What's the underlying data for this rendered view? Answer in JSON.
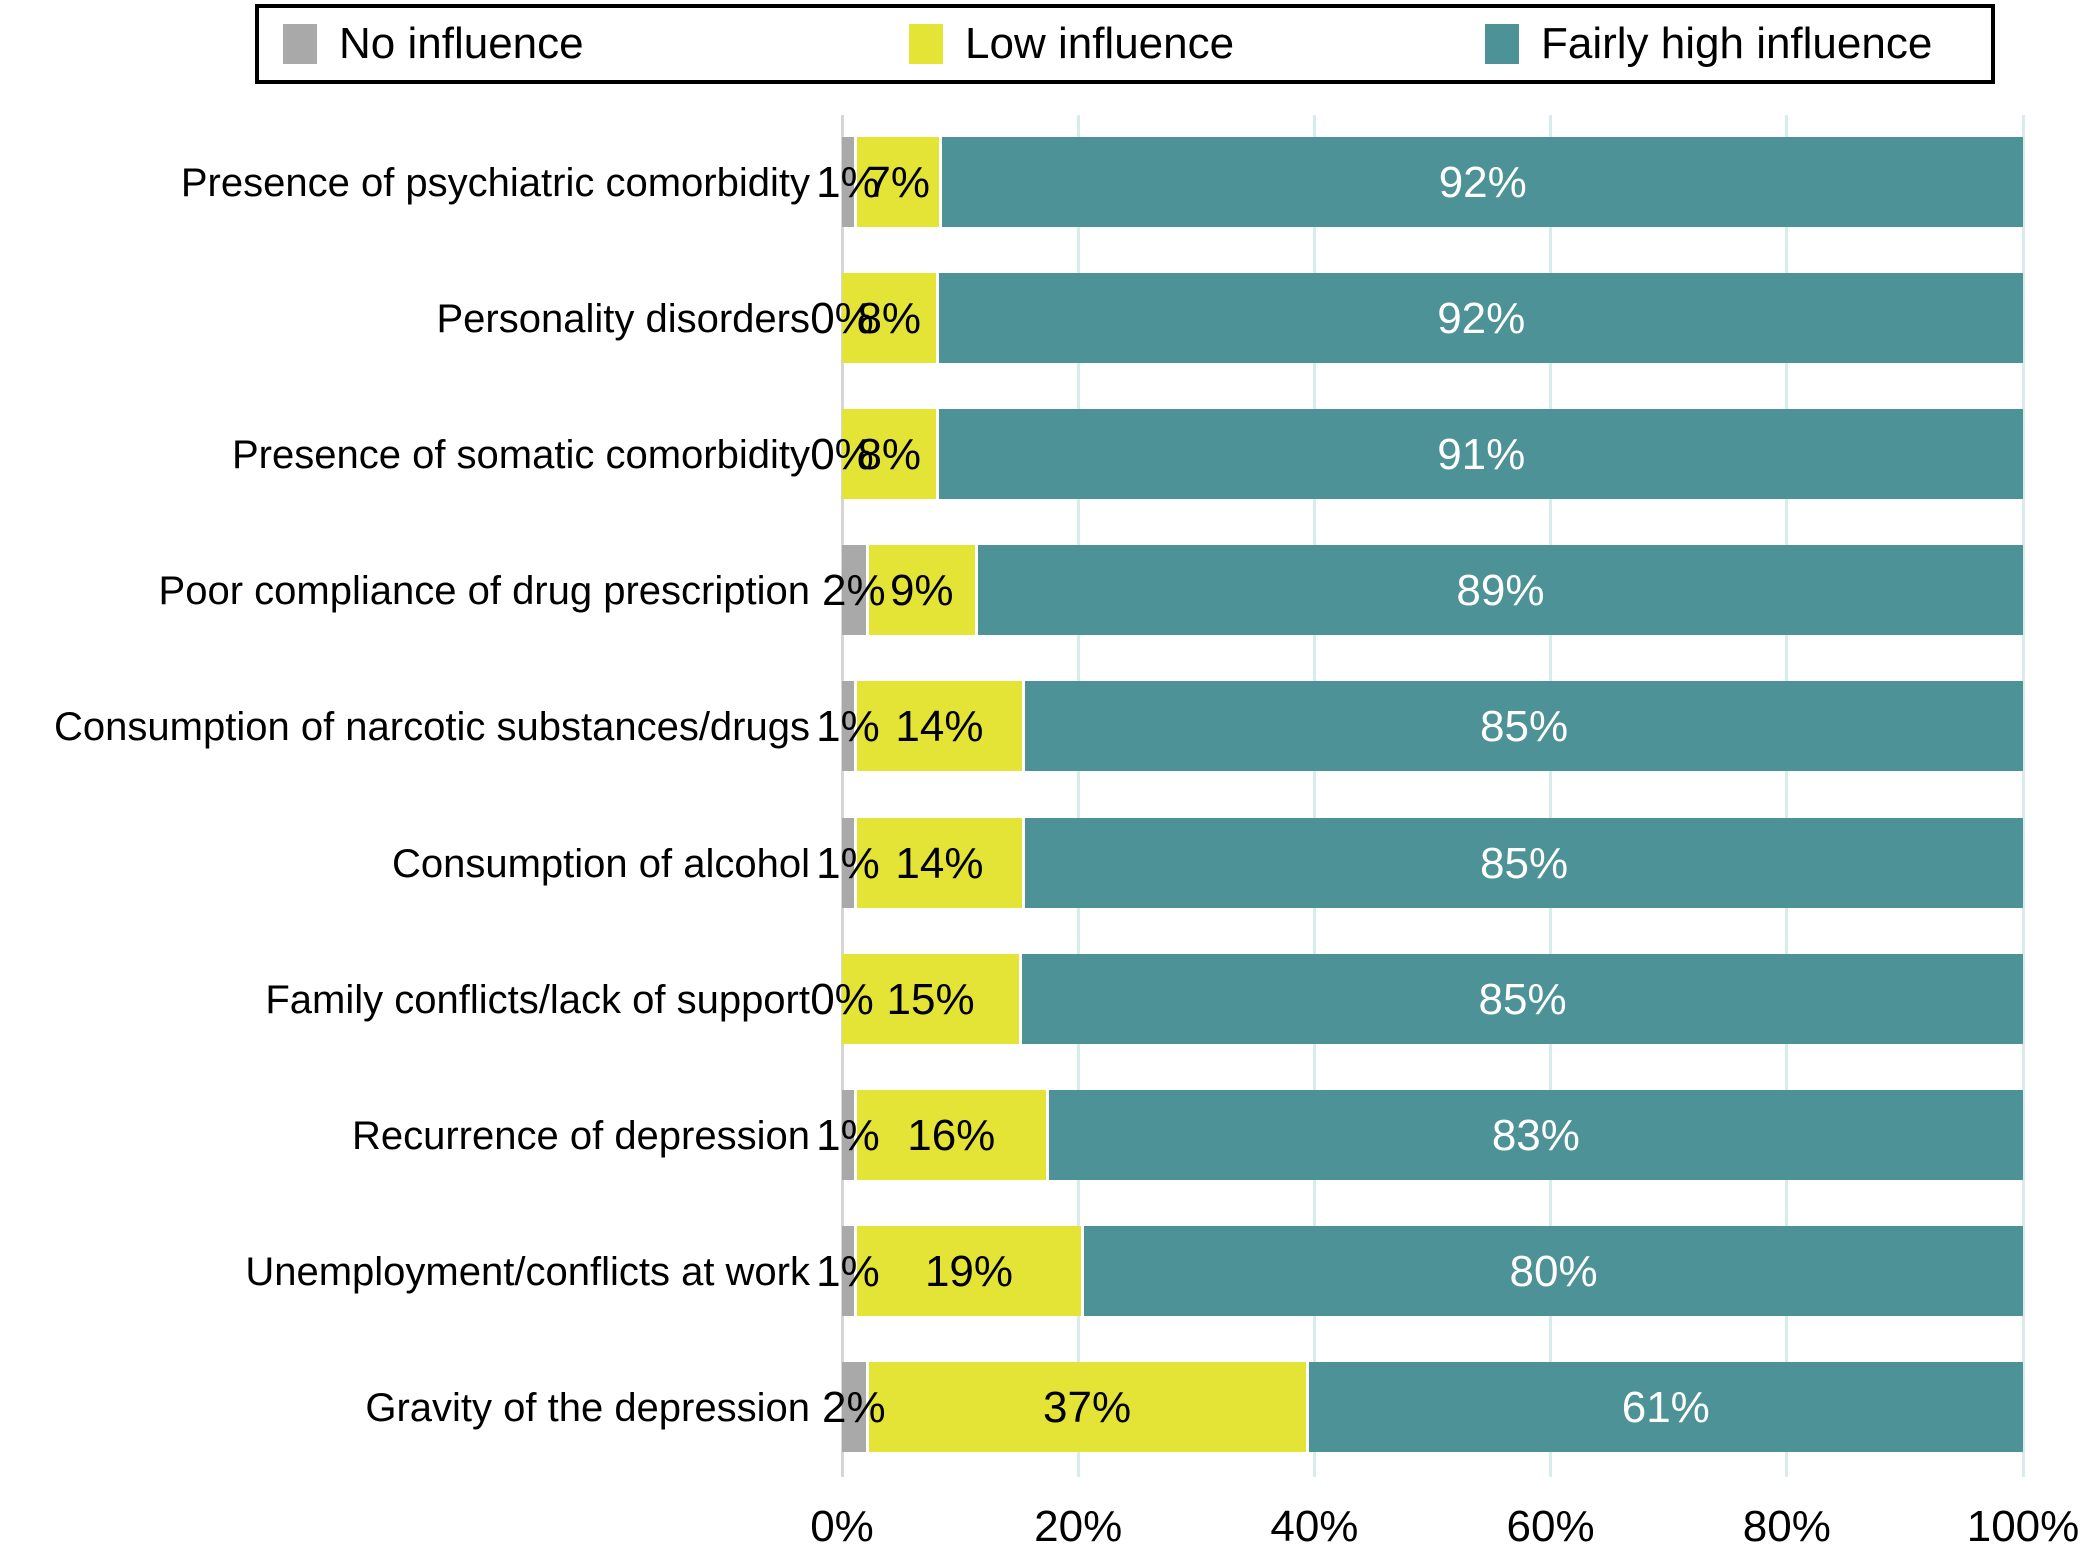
{
  "chart_data": {
    "type": "bar",
    "orientation": "horizontal",
    "stacked": true,
    "title": "",
    "xlabel": "",
    "ylabel": "",
    "xlim": [
      0,
      100
    ],
    "x_ticks": [
      "0%",
      "20%",
      "40%",
      "60%",
      "80%",
      "100%"
    ],
    "grid": true,
    "legend_position": "top",
    "value_suffix": "%",
    "categories": [
      "Presence of psychiatric comorbidity",
      "Personality disorders",
      "Presence of somatic comorbidity",
      "Poor compliance of drug prescription",
      "Consumption of narcotic substances/drugs",
      "Consumption of alcohol",
      "Family conflicts/lack of support",
      "Recurrence of depression",
      "Unemployment/conflicts at work",
      "Gravity of the depression"
    ],
    "series": [
      {
        "name": "No influence",
        "color": "#a9a9a9",
        "label_color": "#000000",
        "values": [
          1,
          0,
          0,
          2,
          1,
          1,
          0,
          1,
          1,
          2
        ]
      },
      {
        "name": "Low influence",
        "color": "#e3e436",
        "label_color": "#000000",
        "values": [
          7,
          8,
          8,
          9,
          14,
          14,
          15,
          16,
          19,
          37
        ]
      },
      {
        "name": "Fairly high influence",
        "color": "#4d9296",
        "label_color": "#ffffff",
        "values": [
          92,
          92,
          91,
          89,
          85,
          85,
          85,
          83,
          80,
          61
        ]
      }
    ]
  },
  "style_colors": {
    "axis_line": "#d6d6d6",
    "gridline": "#d9ecec",
    "legend_border": "#000000",
    "background": "#ffffff"
  }
}
